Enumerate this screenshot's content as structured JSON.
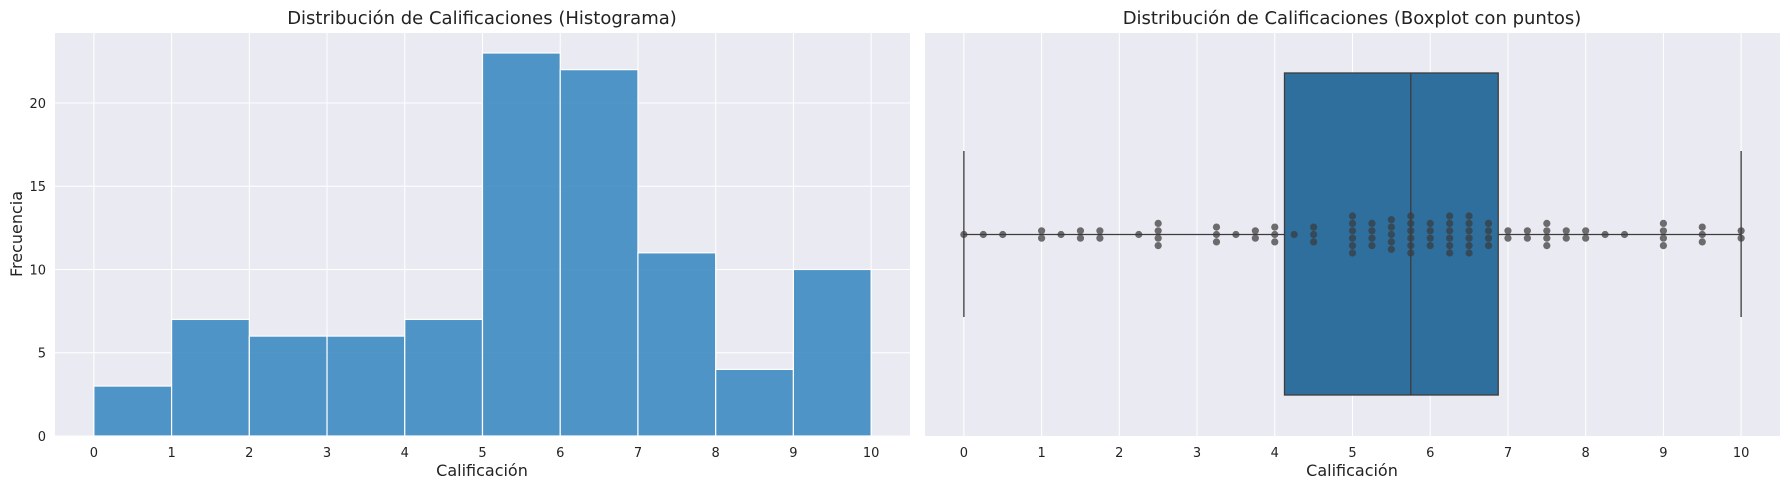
{
  "chart_data": [
    {
      "type": "bar",
      "subtype": "histogram",
      "title": "Distribución de Calificaciones (Histograma)",
      "xlabel": "Calificación",
      "ylabel": "Frecuencia",
      "xlim": [
        -0.5,
        10.5
      ],
      "ylim": [
        0,
        24.2
      ],
      "xticks": [
        0,
        1,
        2,
        3,
        4,
        5,
        6,
        7,
        8,
        9,
        10
      ],
      "yticks": [
        0,
        5,
        10,
        15,
        20
      ],
      "bins": [
        {
          "start": 0,
          "end": 1,
          "count": 3
        },
        {
          "start": 1,
          "end": 2,
          "count": 7
        },
        {
          "start": 2,
          "end": 3,
          "count": 6
        },
        {
          "start": 3,
          "end": 4,
          "count": 6
        },
        {
          "start": 4,
          "end": 5,
          "count": 7
        },
        {
          "start": 5,
          "end": 6,
          "count": 23
        },
        {
          "start": 6,
          "end": 7,
          "count": 22
        },
        {
          "start": 7,
          "end": 8,
          "count": 11
        },
        {
          "start": 8,
          "end": 9,
          "count": 4
        },
        {
          "start": 9,
          "end": 10,
          "count": 10
        }
      ],
      "bar_color": "#3d8bc2",
      "background": "#eaeaf2",
      "grid": true
    },
    {
      "type": "box",
      "title": "Distribución de Calificaciones (Boxplot con puntos)",
      "xlabel": "Calificación",
      "xlim": [
        -0.5,
        10.5
      ],
      "xticks": [
        0,
        1,
        2,
        3,
        4,
        5,
        6,
        7,
        8,
        9,
        10
      ],
      "box": {
        "whisker_low": 0,
        "q1": 4.125,
        "median": 5.75,
        "q3": 6.875,
        "whisker_high": 10
      },
      "box_color": "#2e6f9e",
      "point_color": "#3a3a3a",
      "points": [
        {
          "value": 0,
          "count": 1
        },
        {
          "value": 0.25,
          "count": 1
        },
        {
          "value": 0.5,
          "count": 1
        },
        {
          "value": 1,
          "count": 2
        },
        {
          "value": 1.25,
          "count": 1
        },
        {
          "value": 1.5,
          "count": 2
        },
        {
          "value": 1.75,
          "count": 2
        },
        {
          "value": 2.25,
          "count": 1
        },
        {
          "value": 2.5,
          "count": 4
        },
        {
          "value": 3.25,
          "count": 3
        },
        {
          "value": 3.5,
          "count": 1
        },
        {
          "value": 3.75,
          "count": 2
        },
        {
          "value": 4,
          "count": 3
        },
        {
          "value": 4.25,
          "count": 1
        },
        {
          "value": 4.5,
          "count": 3
        },
        {
          "value": 5,
          "count": 6
        },
        {
          "value": 5.25,
          "count": 4
        },
        {
          "value": 5.5,
          "count": 5
        },
        {
          "value": 5.75,
          "count": 6
        },
        {
          "value": 6,
          "count": 4
        },
        {
          "value": 6.25,
          "count": 6
        },
        {
          "value": 6.5,
          "count": 6
        },
        {
          "value": 6.75,
          "count": 4
        },
        {
          "value": 7,
          "count": 2
        },
        {
          "value": 7.25,
          "count": 2
        },
        {
          "value": 7.5,
          "count": 4
        },
        {
          "value": 7.75,
          "count": 2
        },
        {
          "value": 8,
          "count": 2
        },
        {
          "value": 8.25,
          "count": 1
        },
        {
          "value": 8.5,
          "count": 1
        },
        {
          "value": 9,
          "count": 4
        },
        {
          "value": 9.5,
          "count": 3
        },
        {
          "value": 10,
          "count": 2
        }
      ],
      "background": "#eaeaf2",
      "grid": true
    }
  ]
}
